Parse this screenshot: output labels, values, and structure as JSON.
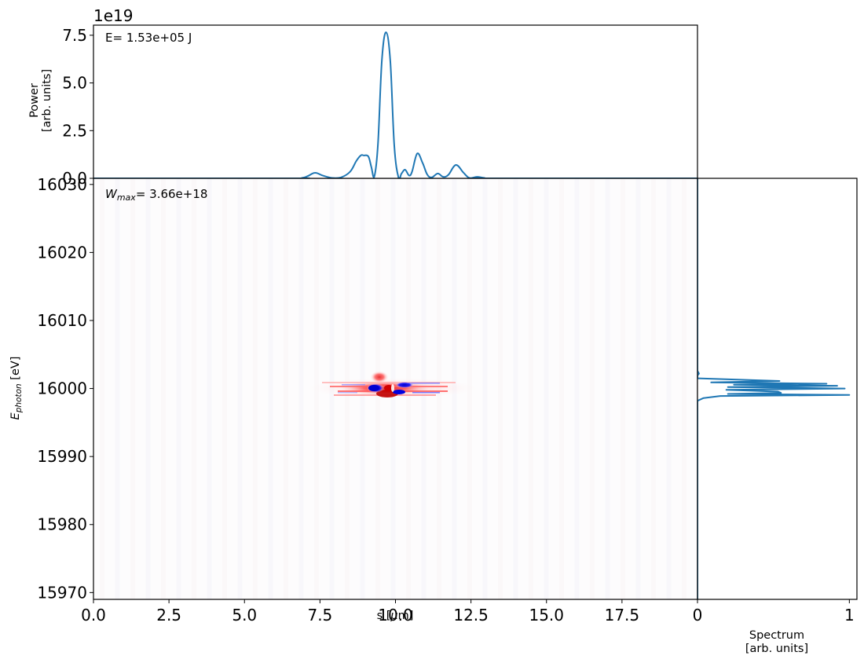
{
  "chart_data": [
    {
      "name": "power-profile",
      "type": "line",
      "title": "",
      "xlabel": "",
      "ylabel": "Power\n[arb. units]",
      "ylabel_lines": [
        "Power",
        "[arb. units]"
      ],
      "offset_text": "1e19",
      "annotation": "E= 1.53e+05 J",
      "xlim": [
        0,
        20
      ],
      "ylim": [
        0,
        8.03
      ],
      "yticks": [
        0.0,
        2.5,
        5.0,
        7.5
      ],
      "ytick_labels": [
        "0.0",
        "2.5",
        "5.0",
        "7.5"
      ],
      "grid": false,
      "color": "#1f77b4",
      "x": [
        0,
        6.5,
        6.9,
        7.1,
        7.34,
        7.6,
        7.9,
        8.2,
        8.5,
        8.7,
        8.85,
        8.95,
        9.1,
        9.2,
        9.3,
        9.42,
        9.55,
        9.69,
        9.83,
        9.96,
        10.1,
        10.2,
        10.32,
        10.45,
        10.55,
        10.72,
        10.9,
        11.05,
        11.2,
        11.4,
        11.58,
        11.75,
        12.0,
        12.25,
        12.45,
        12.7,
        12.95,
        13.3,
        20
      ],
      "values": [
        0,
        0,
        0.02,
        0.12,
        0.29,
        0.14,
        0.02,
        0.05,
        0.35,
        0.9,
        1.2,
        1.2,
        1.15,
        0.6,
        0.1,
        1.8,
        6.2,
        7.65,
        6.1,
        1.7,
        0.05,
        0.25,
        0.45,
        0.15,
        0.35,
        1.3,
        0.8,
        0.2,
        0.05,
        0.25,
        0.08,
        0.18,
        0.7,
        0.3,
        0.02,
        0.08,
        0.02,
        0.0,
        0
      ]
    },
    {
      "name": "wigner-distribution",
      "type": "heatmap",
      "title": "",
      "xlabel": "s [μm]",
      "ylabel": "E_photon [eV]",
      "annotation": "W_max= 3.66e+18",
      "colormap": "seismic (blue-white-red)",
      "xlim": [
        0,
        20
      ],
      "ylim": [
        15969,
        16030.9
      ],
      "xticks": [
        0.0,
        2.5,
        5.0,
        7.5,
        10.0,
        12.5,
        15.0,
        17.5,
        20.0
      ],
      "xtick_labels": [
        "0.0",
        "2.5",
        "5.0",
        "7.5",
        "10.0",
        "12.5",
        "15.0",
        "17.5",
        ""
      ],
      "yticks": [
        15970,
        15980,
        15990,
        16000,
        16010,
        16020,
        16030
      ],
      "ytick_labels": [
        "15970",
        "15980",
        "15990",
        "16000",
        "16010",
        "16020",
        "16030"
      ],
      "z_max": 3.66e+18,
      "features": [
        {
          "s_center": 9.7,
          "E_center": 16000.0,
          "s_width": 4.5,
          "E_width": 1.8,
          "description": "main red/blue fringe blob centred at ~9.7 um, 16000 eV"
        },
        {
          "s": 9.1,
          "E": 16000.0,
          "sign": "negative",
          "color": "blue"
        },
        {
          "s": 10.4,
          "E": 16000.5,
          "sign": "negative",
          "color": "blue"
        },
        {
          "s": 10.2,
          "E": 15999.6,
          "sign": "negative",
          "color": "blue"
        },
        {
          "s": 9.7,
          "E": 15999.8,
          "sign": "positive",
          "color": "dark red"
        }
      ]
    },
    {
      "name": "spectrum",
      "type": "line",
      "orientation": "horizontal",
      "title": "",
      "xlabel": "Spectrum\n[arb. units]",
      "xlabel_lines": [
        "Spectrum",
        "[arb. units]"
      ],
      "xlim": [
        0,
        1.05
      ],
      "ylim": [
        15969,
        16030.9
      ],
      "xticks": [
        0,
        1
      ],
      "xtick_labels": [
        "0",
        "1"
      ],
      "color": "#1f77b4",
      "E": [
        16030.9,
        16002.6,
        16002.2,
        16001.9,
        16001.5,
        16001.1,
        16000.9,
        16000.7,
        16000.55,
        16000.4,
        16000.2,
        16000.0,
        15999.8,
        15999.55,
        15999.35,
        15999.2,
        15999.05,
        15998.9,
        15998.6,
        15998.2,
        15997.9,
        15969
      ],
      "values": [
        0,
        0,
        0.01,
        0.0,
        0.0,
        0.54,
        0.09,
        0.85,
        0.24,
        0.92,
        0.2,
        0.97,
        0.19,
        0.53,
        0.55,
        0.2,
        1.0,
        0.15,
        0.04,
        0.0,
        0.0,
        0
      ]
    }
  ],
  "figure": {
    "top_panel": {
      "offset_text": "1e19",
      "annotation": "E= 1.53e+05 J",
      "ylabel_line1": "Power",
      "ylabel_line2": "[arb. units]"
    },
    "main_panel": {
      "annotation_sym": "W",
      "annotation_sub": "max",
      "annotation_rest": "= 3.66e+18",
      "xlabel_pre": "s [",
      "xlabel_mu": "μ",
      "xlabel_post": "m]",
      "ylabel_sym": "E",
      "ylabel_sub": "photon",
      "ylabel_unit": " [eV]"
    },
    "side_panel": {
      "xlabel_line1": "Spectrum",
      "xlabel_line2": "[arb. units]"
    }
  }
}
